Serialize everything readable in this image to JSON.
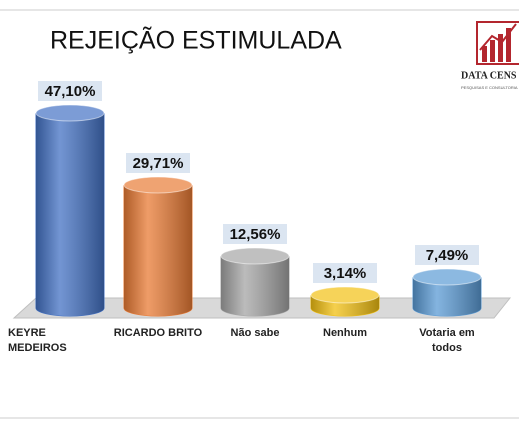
{
  "chart_data": {
    "type": "bar",
    "title": "REJEIÇÃO ESTIMULADA",
    "categories": [
      "KEYRE MEDEIROS",
      "RICARDO BRITO",
      "Não sabe",
      "Nenhum",
      "Votaria em todos"
    ],
    "values": [
      47.1,
      29.71,
      12.56,
      3.14,
      7.49
    ],
    "value_labels": [
      "47,10%",
      "29,71%",
      "12,56%",
      "3,14%",
      "7,49%"
    ],
    "colors": [
      "#4472c4",
      "#e97b35",
      "#a5a5a5",
      "#f2c012",
      "#5b9bd5"
    ]
  },
  "logo": {
    "name": "DATA CENS",
    "tagline": "PESQUISAS E CONSULTORIA"
  }
}
